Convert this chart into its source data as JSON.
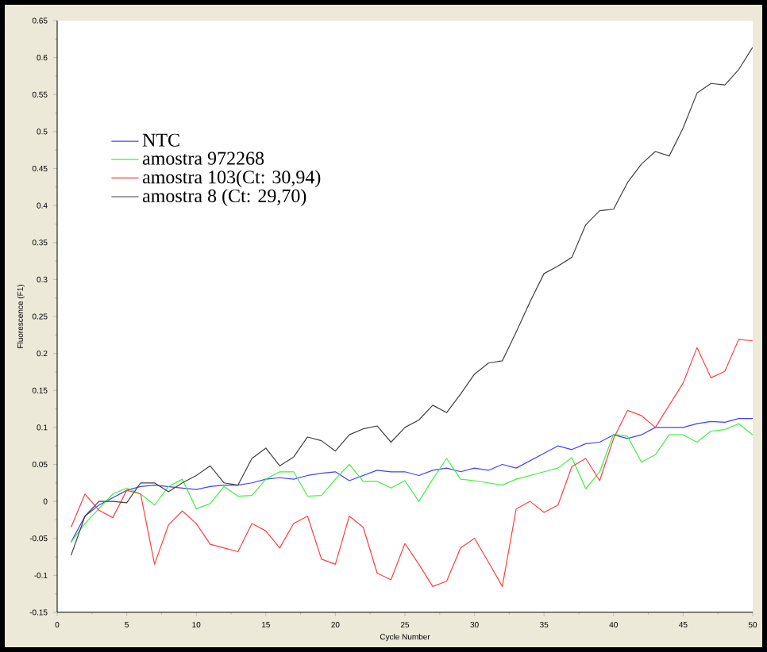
{
  "chart_data": {
    "type": "line",
    "xlabel": "Cycle Number",
    "ylabel": "Fluorescence (F1)",
    "x": [
      1,
      2,
      3,
      4,
      5,
      6,
      7,
      8,
      9,
      10,
      11,
      12,
      13,
      14,
      15,
      16,
      17,
      18,
      19,
      20,
      21,
      22,
      23,
      24,
      25,
      26,
      27,
      28,
      29,
      30,
      31,
      32,
      33,
      34,
      35,
      36,
      37,
      38,
      39,
      40,
      41,
      42,
      43,
      44,
      45,
      46,
      47,
      48,
      49,
      50
    ],
    "series": [
      {
        "name": "NTC",
        "color": "#4040ff",
        "values": [
          -0.055,
          -0.02,
          -0.005,
          0.005,
          0.015,
          0.02,
          0.022,
          0.02,
          0.018,
          0.016,
          0.02,
          0.022,
          0.022,
          0.025,
          0.03,
          0.032,
          0.03,
          0.035,
          0.038,
          0.04,
          0.028,
          0.035,
          0.042,
          0.04,
          0.04,
          0.035,
          0.042,
          0.045,
          0.04,
          0.045,
          0.042,
          0.05,
          0.045,
          0.055,
          0.065,
          0.075,
          0.07,
          0.078,
          0.08,
          0.09,
          0.085,
          0.09,
          0.1,
          0.1,
          0.1,
          0.105,
          0.108,
          0.107,
          0.112,
          0.112
        ]
      },
      {
        "name": "amostra 972268",
        "color": "#40f040",
        "values": [
          -0.055,
          -0.03,
          -0.01,
          0.01,
          0.018,
          0.01,
          -0.005,
          0.02,
          0.03,
          -0.01,
          -0.003,
          0.02,
          0.007,
          0.008,
          0.03,
          0.04,
          0.04,
          0.007,
          0.008,
          0.03,
          0.05,
          0.027,
          0.027,
          0.018,
          0.028,
          0.0,
          0.03,
          0.058,
          0.03,
          0.028,
          0.025,
          0.022,
          0.03,
          0.035,
          0.04,
          0.045,
          0.059,
          0.017,
          0.04,
          0.091,
          0.088,
          0.053,
          0.063,
          0.09,
          0.09,
          0.08,
          0.095,
          0.097,
          0.105,
          0.09
        ]
      },
      {
        "name": "amostra 103(Ct: 30,94)",
        "color": "#ff4040",
        "values": [
          -0.035,
          0.01,
          -0.012,
          -0.022,
          0.015,
          0.01,
          -0.085,
          -0.032,
          -0.013,
          -0.03,
          -0.058,
          -0.063,
          -0.068,
          -0.03,
          -0.04,
          -0.063,
          -0.03,
          -0.02,
          -0.078,
          -0.085,
          -0.02,
          -0.035,
          -0.097,
          -0.106,
          -0.057,
          -0.085,
          -0.115,
          -0.108,
          -0.063,
          -0.05,
          -0.082,
          -0.115,
          -0.01,
          0.0,
          -0.015,
          -0.005,
          0.047,
          0.058,
          0.028,
          0.085,
          0.123,
          0.116,
          0.1,
          0.13,
          0.16,
          0.208,
          0.167,
          0.176,
          0.219,
          0.217
        ]
      },
      {
        "name": "amostra 8 (Ct: 29,70)",
        "color": "#404040",
        "values": [
          -0.073,
          -0.02,
          0.0,
          0.0,
          -0.002,
          0.025,
          0.025,
          0.013,
          0.025,
          0.035,
          0.048,
          0.025,
          0.022,
          0.058,
          0.072,
          0.048,
          0.06,
          0.087,
          0.082,
          0.068,
          0.09,
          0.098,
          0.102,
          0.08,
          0.1,
          0.11,
          0.13,
          0.12,
          0.145,
          0.172,
          0.187,
          0.19,
          0.229,
          0.27,
          0.308,
          0.318,
          0.33,
          0.374,
          0.393,
          0.395,
          0.431,
          0.456,
          0.473,
          0.467,
          0.505,
          0.552,
          0.565,
          0.563,
          0.584,
          0.614
        ]
      }
    ],
    "xlim": [
      0,
      50
    ],
    "xticks": [
      0,
      5,
      10,
      15,
      20,
      25,
      30,
      35,
      40,
      45,
      50
    ],
    "ylim": [
      -0.15,
      0.65
    ],
    "yticks": [
      -0.15,
      -0.1,
      -0.05,
      0,
      0.05,
      0.1,
      0.15,
      0.2,
      0.25,
      0.3,
      0.35,
      0.4,
      0.45,
      0.5,
      0.55,
      0.6,
      0.65
    ],
    "legend": "top left",
    "grid": false,
    "marker": "none",
    "line_style": "solid"
  }
}
